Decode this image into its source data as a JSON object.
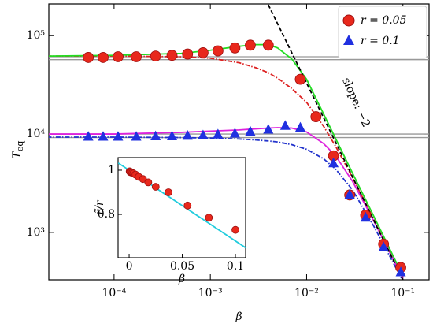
{
  "chart_data": {
    "type": "line",
    "x_label": "β",
    "y_label": "T",
    "y_label_sub": "eq",
    "log_x": true,
    "log_y": true,
    "xlim": [
      2.1e-05,
      0.187
    ],
    "ylim": [
      330,
      210000
    ],
    "xticks": [
      {
        "value": 0.0001,
        "label": "10⁻⁴"
      },
      {
        "value": 0.001,
        "label": "10⁻³"
      },
      {
        "value": 0.01,
        "label": "10⁻²"
      },
      {
        "value": 0.1,
        "label": "10⁻¹"
      }
    ],
    "yticks": [
      {
        "value": 1000,
        "label": "10³"
      },
      {
        "value": 10000,
        "label": "10⁴"
      },
      {
        "value": 100000,
        "label": "10⁵"
      }
    ],
    "legend": "upper right",
    "annotation": "slope: −2",
    "series": [
      {
        "color": "#999999",
        "style": "solid",
        "x": [
          2.1e-05,
          0.187
        ],
        "values": [
          61000,
          61000
        ]
      },
      {
        "color": "#999999",
        "style": "solid",
        "x": [
          2.1e-05,
          0.187
        ],
        "values": [
          57000,
          57000
        ]
      },
      {
        "color": "#999999",
        "style": "solid",
        "x": [
          2.1e-05,
          0.187
        ],
        "values": [
          10000,
          10000
        ]
      },
      {
        "color": "#999999",
        "style": "solid",
        "x": [
          2.1e-05,
          0.187
        ],
        "values": [
          9200,
          9200
        ]
      },
      {
        "color": "#dd2222",
        "style": "dashdot",
        "x": [
          2e-05,
          0.0001,
          0.0005,
          0.001,
          0.002,
          0.003,
          0.004,
          0.005,
          0.007,
          0.01,
          0.015,
          0.02,
          0.03,
          0.05,
          0.07,
          0.1
        ],
        "values": [
          62000,
          62000,
          61000,
          59000,
          53000,
          47000,
          42000,
          37000,
          29000,
          21000,
          12000,
          7500,
          3600,
          1350,
          700,
          350
        ]
      },
      {
        "color": "#2233cc",
        "style": "dashdot",
        "x": [
          2e-05,
          0.0001,
          0.0005,
          0.001,
          0.002,
          0.003,
          0.004,
          0.005,
          0.007,
          0.01,
          0.015,
          0.02,
          0.03,
          0.05,
          0.07,
          0.1
        ],
        "values": [
          9300,
          9300,
          9200,
          9100,
          8900,
          8700,
          8500,
          8300,
          7800,
          7000,
          5600,
          4400,
          2700,
          1150,
          620,
          320
        ]
      },
      {
        "color": "#22dd22",
        "style": "solid",
        "x": [
          2e-05,
          0.0001,
          0.0005,
          0.001,
          0.002,
          0.003,
          0.004,
          0.005,
          0.007,
          0.01,
          0.015,
          0.02,
          0.03,
          0.05,
          0.07,
          0.1
        ],
        "values": [
          62000,
          63000,
          66000,
          71000,
          78000,
          81000,
          81000,
          75000,
          58000,
          36000,
          16000,
          9000,
          4000,
          1450,
          740,
          360
        ]
      },
      {
        "color": "#dd22dd",
        "style": "solid",
        "x": [
          2e-05,
          0.0001,
          0.0005,
          0.001,
          0.002,
          0.003,
          0.004,
          0.005,
          0.007,
          0.01,
          0.015,
          0.02,
          0.03,
          0.05,
          0.07,
          0.1
        ],
        "values": [
          10000,
          10000,
          10400,
          10700,
          11000,
          11300,
          11500,
          11600,
          11500,
          10500,
          8000,
          6000,
          3300,
          1300,
          680,
          340
        ]
      },
      {
        "name": "r = 0.05",
        "color": "#e8281c",
        "marker": "circle",
        "x": [
          5.4e-05,
          7.7e-05,
          0.00011,
          0.00017,
          0.00027,
          0.0004,
          0.00058,
          0.00084,
          0.0012,
          0.0018,
          0.0026,
          0.004,
          0.0086,
          0.0125,
          0.019,
          0.028,
          0.041,
          0.063,
          0.095
        ],
        "values": [
          60000,
          60000,
          61000,
          61000,
          62000,
          63000,
          65000,
          67000,
          70000,
          75000,
          80000,
          80000,
          36000,
          15000,
          6000,
          2400,
          1500,
          760,
          440
        ]
      },
      {
        "name": "r = 0.1",
        "color": "#2030e0",
        "marker": "triangle",
        "x": [
          5.4e-05,
          7.7e-05,
          0.00011,
          0.00017,
          0.00027,
          0.0004,
          0.00058,
          0.00084,
          0.0012,
          0.0018,
          0.0026,
          0.004,
          0.006,
          0.0086,
          0.019,
          0.028,
          0.041,
          0.063,
          0.095
        ],
        "values": [
          9300,
          9300,
          9300,
          9300,
          9400,
          9400,
          9500,
          9600,
          9800,
          10000,
          10500,
          11000,
          12000,
          11500,
          5000,
          2400,
          1400,
          700,
          390
        ]
      },
      {
        "color": "#000000",
        "style": "dashed",
        "x": [
          0.004,
          0.1
        ],
        "values": [
          206000,
          330
        ]
      }
    ],
    "inset": {
      "x_label": "β",
      "y_label": "r̃/r",
      "xlim": [
        -0.0104,
        0.1096
      ],
      "ylim": [
        0.604,
        1.057
      ],
      "xticks": [
        0,
        0.05,
        0.1
      ],
      "yticks": [
        0.8,
        1
      ],
      "series": [
        {
          "color": "#22ccdd",
          "style": "solid",
          "x": [
            -0.0104,
            0.1096
          ],
          "values": [
            1.033,
            0.649
          ]
        },
        {
          "color": "#e8281c",
          "marker": "circle",
          "x": [
            0.0005,
            0.001,
            0.002,
            0.003,
            0.004,
            0.006,
            0.009,
            0.013,
            0.018,
            0.025,
            0.037,
            0.055,
            0.075,
            0.1
          ],
          "values": [
            0.995,
            0.992,
            0.99,
            0.988,
            0.985,
            0.98,
            0.97,
            0.96,
            0.945,
            0.925,
            0.9,
            0.84,
            0.785,
            0.73
          ]
        }
      ]
    }
  }
}
